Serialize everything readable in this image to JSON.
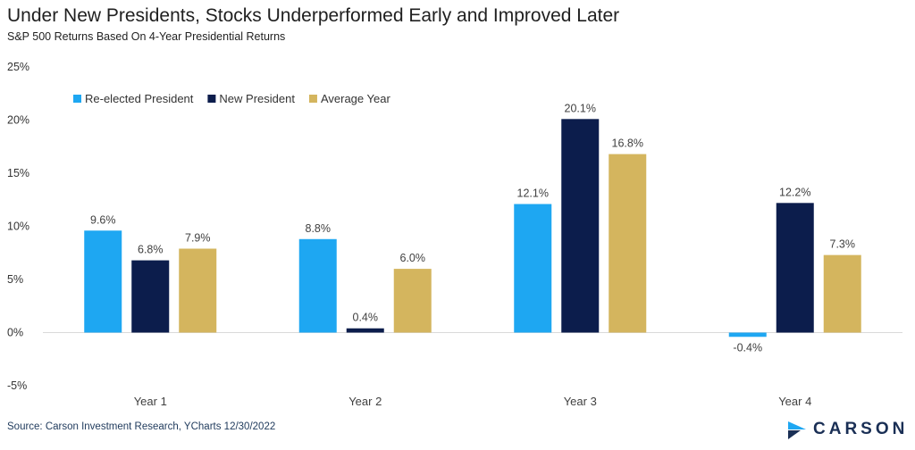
{
  "header": {
    "title": "Under New Presidents, Stocks Underperformed Early and Improved Later",
    "subtitle": "S&P 500 Returns Based On 4-Year Presidential Returns"
  },
  "footer": {
    "source": "Source: Carson Investment Research, YCharts 12/30/2022",
    "logo_text": "CARSON"
  },
  "chart_data": {
    "type": "bar",
    "title": "Under New Presidents, Stocks Underperformed Early and Improved Later",
    "subtitle": "S&P 500 Returns Based On 4-Year Presidential Returns",
    "categories": [
      "Year 1",
      "Year 2",
      "Year 3",
      "Year 4"
    ],
    "series": [
      {
        "name": "Re-elected President",
        "color": "#1ea7f2",
        "values": [
          9.6,
          8.8,
          12.1,
          -0.4
        ],
        "labels": [
          "9.6%",
          "8.8%",
          "12.1%",
          "-0.4%"
        ]
      },
      {
        "name": "New President",
        "color": "#0c1d4c",
        "values": [
          6.8,
          0.4,
          20.1,
          12.2
        ],
        "labels": [
          "6.8%",
          "0.4%",
          "20.1%",
          "12.2%"
        ]
      },
      {
        "name": "Average Year",
        "color": "#d4b55e",
        "values": [
          7.9,
          6.0,
          16.8,
          7.3
        ],
        "labels": [
          "7.9%",
          "6.0%",
          "16.8%",
          "7.3%"
        ]
      }
    ],
    "yticks": [
      -5,
      0,
      5,
      10,
      15,
      20,
      25
    ],
    "ytick_labels": [
      "-5%",
      "0%",
      "5%",
      "10%",
      "15%",
      "20%",
      "25%"
    ],
    "ylim": [
      -5,
      25
    ],
    "grid": false,
    "legend_position": "top-left"
  }
}
